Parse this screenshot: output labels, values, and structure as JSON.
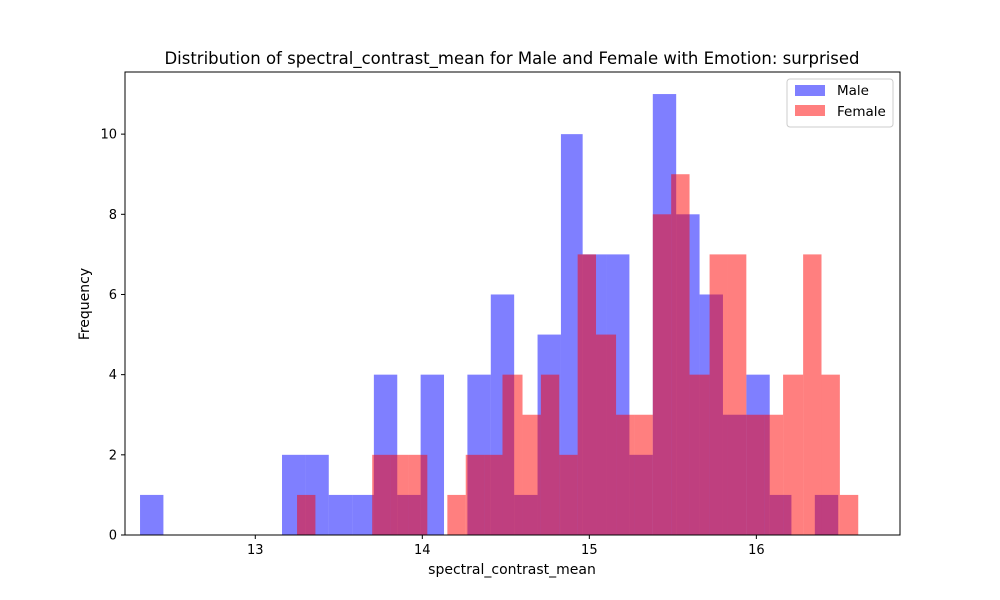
{
  "chart_data": {
    "type": "bar",
    "title": "Distribution of spectral_contrast_mean for Male and Female with Emotion: surprised",
    "xlabel": "spectral_contrast_mean",
    "ylabel": "Frequency",
    "xlim": [
      12.22,
      16.86
    ],
    "ylim": [
      0,
      11.55
    ],
    "xticks": [
      13,
      14,
      15,
      16
    ],
    "yticks": [
      0,
      2,
      4,
      6,
      8,
      10
    ],
    "grid": false,
    "legend_position": "top-right",
    "series": [
      {
        "name": "Male",
        "color": "#0000ff",
        "opacity": 0.5,
        "bins": [
          {
            "x0": 12.31,
            "x1": 12.45,
            "count": 1
          },
          {
            "x0": 13.16,
            "x1": 13.3,
            "count": 2
          },
          {
            "x0": 13.3,
            "x1": 13.44,
            "count": 2
          },
          {
            "x0": 13.44,
            "x1": 13.58,
            "count": 1
          },
          {
            "x0": 13.58,
            "x1": 13.71,
            "count": 1
          },
          {
            "x0": 13.71,
            "x1": 13.85,
            "count": 4
          },
          {
            "x0": 13.85,
            "x1": 13.99,
            "count": 1
          },
          {
            "x0": 13.99,
            "x1": 14.13,
            "count": 4
          },
          {
            "x0": 14.27,
            "x1": 14.41,
            "count": 4
          },
          {
            "x0": 14.41,
            "x1": 14.55,
            "count": 6
          },
          {
            "x0": 14.55,
            "x1": 14.69,
            "count": 1
          },
          {
            "x0": 14.69,
            "x1": 14.83,
            "count": 5
          },
          {
            "x0": 14.83,
            "x1": 14.96,
            "count": 10
          },
          {
            "x0": 14.96,
            "x1": 15.1,
            "count": 7
          },
          {
            "x0": 15.1,
            "x1": 15.24,
            "count": 7
          },
          {
            "x0": 15.24,
            "x1": 15.38,
            "count": 2
          },
          {
            "x0": 15.38,
            "x1": 15.52,
            "count": 11
          },
          {
            "x0": 15.52,
            "x1": 15.66,
            "count": 8
          },
          {
            "x0": 15.66,
            "x1": 15.8,
            "count": 6
          },
          {
            "x0": 15.8,
            "x1": 15.94,
            "count": 3
          },
          {
            "x0": 15.94,
            "x1": 16.08,
            "count": 4
          },
          {
            "x0": 16.08,
            "x1": 16.21,
            "count": 1
          },
          {
            "x0": 16.35,
            "x1": 16.49,
            "count": 1
          }
        ]
      },
      {
        "name": "Female",
        "color": "#ff0000",
        "opacity": 0.5,
        "bins": [
          {
            "x0": 13.25,
            "x1": 13.36,
            "count": 1
          },
          {
            "x0": 13.7,
            "x1": 13.81,
            "count": 2
          },
          {
            "x0": 13.81,
            "x1": 13.92,
            "count": 2
          },
          {
            "x0": 13.92,
            "x1": 14.03,
            "count": 2
          },
          {
            "x0": 14.15,
            "x1": 14.26,
            "count": 1
          },
          {
            "x0": 14.26,
            "x1": 14.37,
            "count": 2
          },
          {
            "x0": 14.37,
            "x1": 14.48,
            "count": 2
          },
          {
            "x0": 14.48,
            "x1": 14.6,
            "count": 4
          },
          {
            "x0": 14.6,
            "x1": 14.71,
            "count": 3
          },
          {
            "x0": 14.71,
            "x1": 14.82,
            "count": 4
          },
          {
            "x0": 14.82,
            "x1": 14.93,
            "count": 2
          },
          {
            "x0": 14.93,
            "x1": 15.04,
            "count": 7
          },
          {
            "x0": 15.04,
            "x1": 15.16,
            "count": 5
          },
          {
            "x0": 15.16,
            "x1": 15.27,
            "count": 3
          },
          {
            "x0": 15.27,
            "x1": 15.38,
            "count": 3
          },
          {
            "x0": 15.38,
            "x1": 15.49,
            "count": 8
          },
          {
            "x0": 15.49,
            "x1": 15.6,
            "count": 9
          },
          {
            "x0": 15.6,
            "x1": 15.72,
            "count": 4
          },
          {
            "x0": 15.72,
            "x1": 15.83,
            "count": 7
          },
          {
            "x0": 15.83,
            "x1": 15.94,
            "count": 7
          },
          {
            "x0": 15.94,
            "x1": 16.05,
            "count": 3
          },
          {
            "x0": 16.05,
            "x1": 16.16,
            "count": 3
          },
          {
            "x0": 16.16,
            "x1": 16.28,
            "count": 4
          },
          {
            "x0": 16.28,
            "x1": 16.39,
            "count": 7
          },
          {
            "x0": 16.39,
            "x1": 16.5,
            "count": 4
          },
          {
            "x0": 16.5,
            "x1": 16.61,
            "count": 1
          }
        ]
      }
    ]
  }
}
